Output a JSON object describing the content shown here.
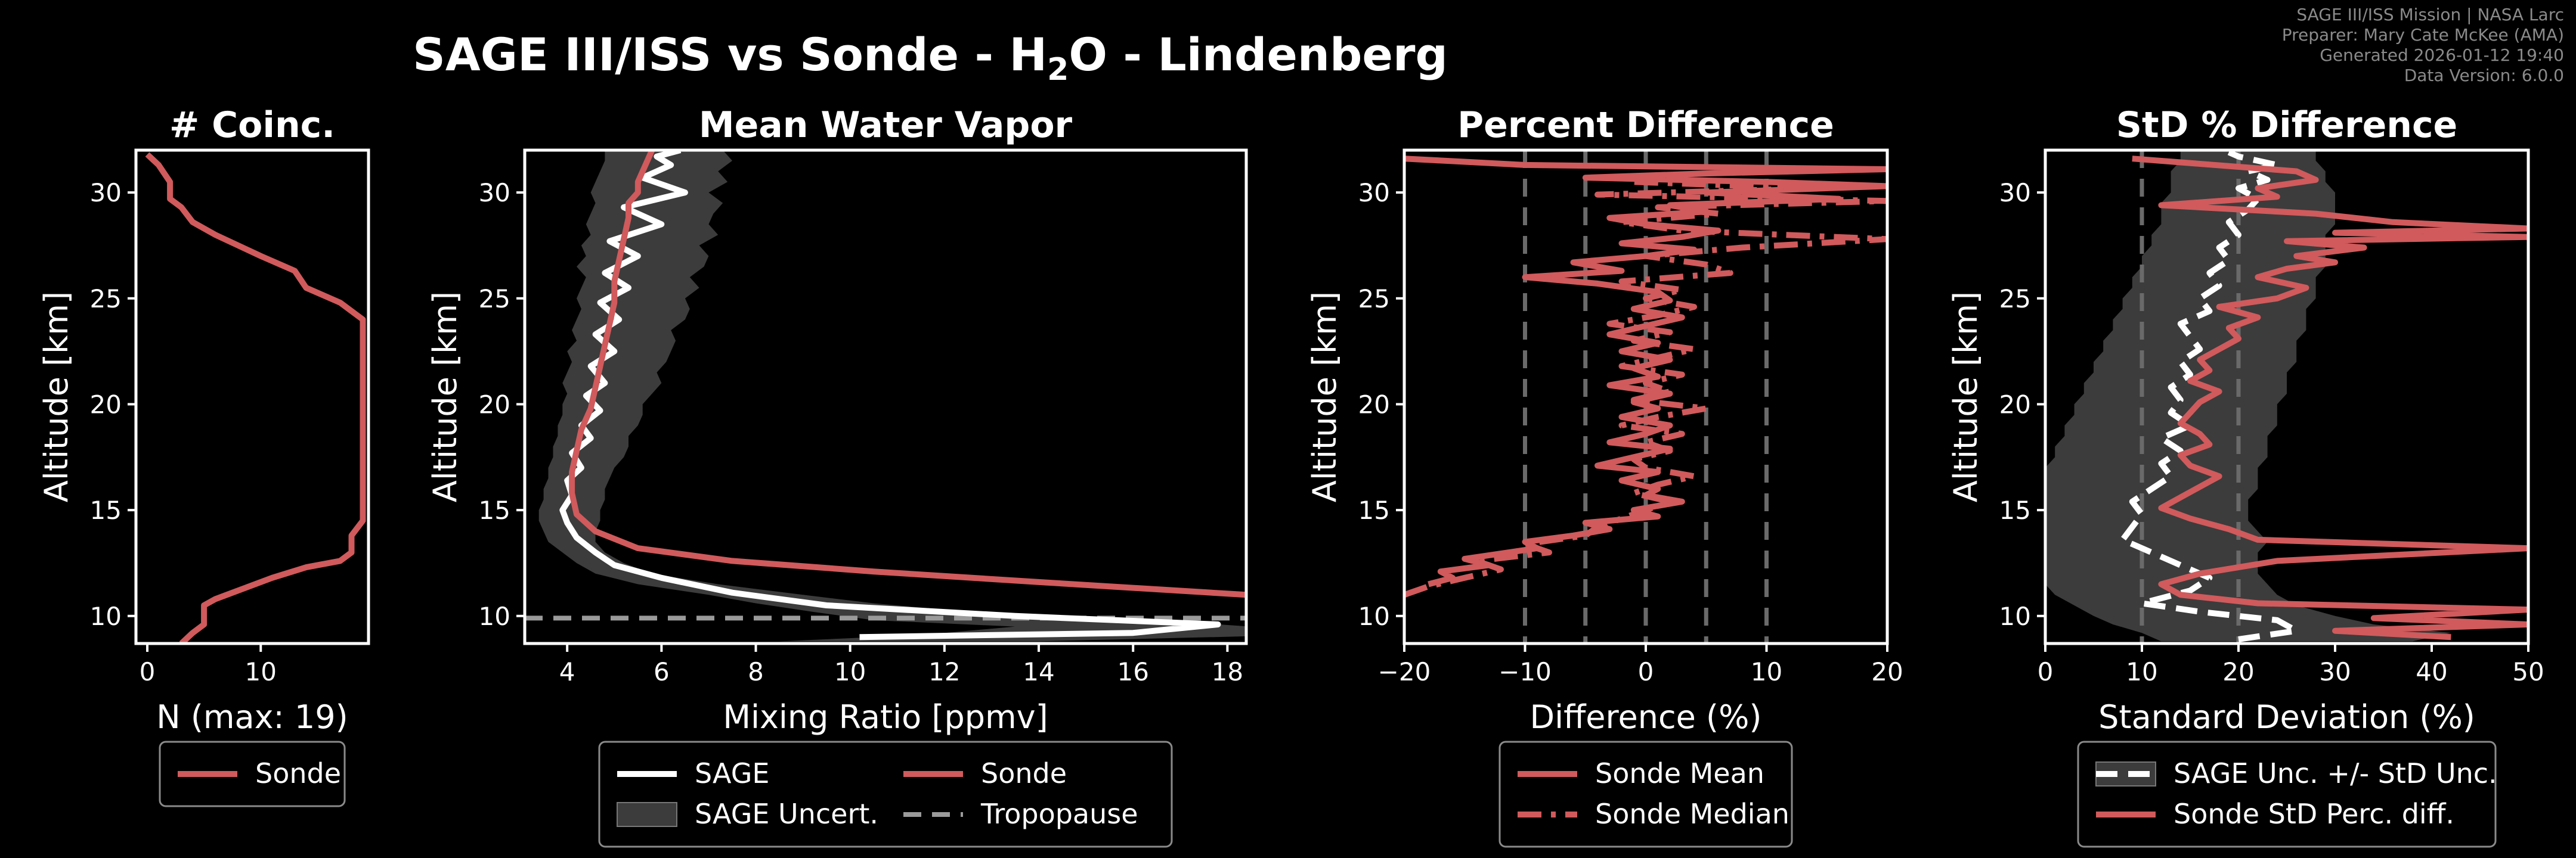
{
  "title_main": "SAGE III/ISS vs Sonde - H",
  "title_sub": "2",
  "title_tail": "O - Lindenberg",
  "meta": [
    "SAGE III/ISS Mission | NASA Larc",
    "Preparer: Mary Cate McKee (AMA)",
    "Generated 2026-01-12 19:40",
    "Data Version: 6.0.0"
  ],
  "colors": {
    "sonde": "#d05a5c",
    "sage": "#ffffff",
    "band": "#3c3c3c",
    "tropopause": "#9a9a9a",
    "grid": "#6a6a6a"
  },
  "chart_data": [
    {
      "type": "line",
      "title": "# Coinc.",
      "xlabel": "N (max: 19)",
      "ylabel": "Altitude [km]",
      "xlim": [
        -1,
        19.5
      ],
      "ylim": [
        8.7,
        32
      ],
      "xticks": [
        0,
        10
      ],
      "yticks": [
        10,
        15,
        20,
        25,
        30
      ],
      "legend": [
        "Sonde"
      ],
      "series": [
        {
          "name": "Sonde",
          "style": "sonde",
          "x": [
            3,
            4,
            5,
            5,
            6,
            8,
            11,
            14,
            17,
            18,
            18,
            19,
            19,
            19,
            19,
            19,
            18,
            17,
            14,
            13,
            10,
            8,
            6,
            4,
            3,
            2,
            2,
            1,
            0
          ],
          "y": [
            8.7,
            9.2,
            9.6,
            10.5,
            10.8,
            11.2,
            11.8,
            12.3,
            12.6,
            13,
            13.8,
            14.5,
            18,
            21,
            22.5,
            24,
            24.4,
            24.8,
            25.5,
            26.3,
            27,
            27.5,
            28,
            28.6,
            29.3,
            29.7,
            30.5,
            31.3,
            31.8
          ]
        }
      ]
    },
    {
      "type": "line",
      "title": "Mean Water Vapor",
      "xlabel": "Mixing Ratio [ppmv]",
      "ylabel": "Altitude [km]",
      "xlim": [
        3.1,
        18.4
      ],
      "ylim": [
        8.7,
        32
      ],
      "xticks": [
        4,
        6,
        8,
        10,
        12,
        14,
        16,
        18
      ],
      "yticks": [
        10,
        15,
        20,
        25,
        30
      ],
      "legend": [
        "SAGE",
        "Sonde",
        "SAGE Uncert.",
        "Tropopause"
      ],
      "tropopause_km": 9.9,
      "band": {
        "name": "SAGE Uncert.",
        "y": [
          8.8,
          9.1,
          9.5,
          9.8,
          10.2,
          10.6,
          11.0,
          11.5,
          12.0,
          12.5,
          13.0,
          13.5,
          14.0,
          14.5,
          15.0,
          15.5,
          16.0,
          16.5,
          17.0,
          17.5,
          18.0,
          18.5,
          19.0,
          19.5,
          20.0,
          20.5,
          21.0,
          21.5,
          22.0,
          22.5,
          23.0,
          23.5,
          24.0,
          24.5,
          25.0,
          25.5,
          26.0,
          26.5,
          27.0,
          27.5,
          28.0,
          28.5,
          29.0,
          29.5,
          30.0,
          30.5,
          31.0,
          31.5,
          32.0
        ],
        "lo": [
          8.5,
          11.5,
          13.5,
          10.5,
          9.2,
          8.0,
          7.0,
          5.5,
          4.6,
          4.2,
          3.9,
          3.6,
          3.5,
          3.4,
          3.4,
          3.5,
          3.5,
          3.6,
          3.6,
          3.7,
          3.7,
          3.8,
          3.8,
          3.9,
          3.9,
          4.0,
          3.9,
          4.0,
          4.1,
          4.0,
          4.2,
          4.1,
          4.2,
          4.3,
          4.2,
          4.3,
          4.4,
          4.2,
          4.4,
          4.3,
          4.5,
          4.4,
          4.5,
          4.6,
          4.5,
          4.6,
          4.7,
          4.8,
          4.8
        ],
        "hi": [
          14.0,
          19.5,
          18.5,
          16.5,
          12.5,
          10.5,
          9.0,
          7.2,
          5.8,
          5.2,
          4.8,
          4.6,
          4.6,
          4.7,
          4.7,
          4.8,
          4.8,
          4.9,
          5.0,
          5.2,
          5.3,
          5.3,
          5.5,
          5.6,
          5.6,
          5.8,
          6.0,
          5.9,
          6.1,
          6.2,
          6.3,
          6.2,
          6.5,
          6.6,
          6.5,
          6.8,
          6.6,
          6.9,
          7.0,
          6.8,
          7.2,
          7.0,
          7.1,
          7.3,
          7.0,
          7.4,
          7.2,
          7.5,
          7.3
        ]
      },
      "series": [
        {
          "name": "SAGE",
          "style": "sage",
          "x": [
            10.2,
            16.0,
            17.8,
            13.5,
            9.5,
            7.5,
            6.0,
            5.0,
            4.6,
            4.2,
            4.0,
            3.9,
            4.1,
            4.0,
            4.3,
            4.1,
            4.5,
            4.3,
            4.7,
            4.4,
            4.8,
            4.5,
            5.0,
            4.6,
            5.1,
            4.7,
            5.3,
            4.8,
            5.5,
            4.9,
            6.0,
            5.2,
            6.5,
            5.6,
            6.2,
            5.9,
            6.4
          ],
          "y": [
            9.0,
            9.2,
            9.6,
            10.0,
            10.5,
            11.1,
            11.8,
            12.4,
            13.0,
            13.7,
            14.4,
            15.0,
            15.7,
            16.4,
            17.0,
            17.7,
            18.4,
            19.0,
            19.7,
            20.4,
            21.0,
            21.8,
            22.5,
            23.3,
            24.0,
            24.8,
            25.5,
            26.2,
            27.0,
            27.7,
            28.5,
            29.3,
            30.0,
            30.7,
            31.3,
            31.7,
            32.0
          ]
        },
        {
          "name": "Sonde",
          "style": "sonde",
          "x": [
            18.4,
            14.0,
            10.5,
            7.5,
            5.5,
            4.6,
            4.2,
            4.1,
            4.1,
            4.2,
            4.3,
            4.5,
            4.6,
            4.7,
            4.8,
            4.9,
            5.0,
            5.0,
            5.1,
            5.2,
            5.3,
            5.3,
            5.5,
            5.5,
            5.6,
            5.7,
            5.8
          ],
          "y": [
            11.0,
            11.6,
            12.1,
            12.6,
            13.2,
            14.0,
            14.8,
            15.8,
            16.8,
            17.8,
            18.8,
            19.8,
            20.8,
            21.8,
            22.8,
            23.8,
            24.8,
            25.8,
            26.8,
            27.8,
            28.8,
            29.5,
            30.0,
            30.5,
            31.0,
            31.5,
            32.0
          ]
        }
      ]
    },
    {
      "type": "line",
      "title": "Percent Difference",
      "xlabel": "Difference (%)",
      "ylabel": "Altitude [km]",
      "xlim": [
        -20,
        20
      ],
      "ylim": [
        8.7,
        32
      ],
      "xticks": [
        -20,
        -10,
        0,
        10,
        20
      ],
      "yticks": [
        10,
        15,
        20,
        25,
        30
      ],
      "vlines": [
        -10,
        -5,
        0,
        5,
        10
      ],
      "legend": [
        "Sonde Mean",
        "Sonde Median"
      ],
      "series": [
        {
          "name": "Sonde Mean",
          "style": "sonde",
          "x": [
            -18,
            -16,
            -17,
            -13,
            -15,
            -9,
            -10,
            -6,
            -3,
            -5,
            1,
            -1,
            3,
            0,
            1,
            -2,
            1,
            -4,
            -1,
            2,
            -3,
            0,
            2,
            -2,
            1,
            -1,
            2,
            -3,
            1,
            -1,
            2,
            -2,
            1,
            -3,
            0,
            3,
            -1,
            2,
            1,
            -4,
            -10,
            -2,
            -6,
            0,
            4,
            -2,
            3,
            6,
            0,
            -3,
            5,
            2,
            16,
            5,
            20,
            10,
            -5,
            5,
            20,
            -10,
            -20
          ],
          "y": [
            11.5,
            11.8,
            12.1,
            12.4,
            12.7,
            13.2,
            13.5,
            13.8,
            14.1,
            14.4,
            14.7,
            15.0,
            15.4,
            15.7,
            16.0,
            16.4,
            16.8,
            17.1,
            17.5,
            17.9,
            18.2,
            18.6,
            19.0,
            19.4,
            19.8,
            20.1,
            20.5,
            20.9,
            21.3,
            21.7,
            22.1,
            22.5,
            22.9,
            23.3,
            23.7,
            24.1,
            24.5,
            24.9,
            25.3,
            25.7,
            26.0,
            26.3,
            26.7,
            27.0,
            27.3,
            27.6,
            27.9,
            28.2,
            28.5,
            28.8,
            29.1,
            29.4,
            29.7,
            30.0,
            30.3,
            30.5,
            30.7,
            30.9,
            31.1,
            31.3,
            31.6
          ]
        },
        {
          "name": "Sonde Median",
          "style": "sonde-dashdot",
          "x": [
            -20,
            -18,
            -15,
            -12,
            -14,
            -8,
            -10,
            -5,
            -4,
            -2,
            0,
            2,
            -1,
            1,
            4,
            0,
            -1,
            2,
            0,
            3,
            -2,
            1,
            5,
            -1,
            2,
            0,
            3,
            -2,
            1,
            4,
            -1,
            2,
            -3,
            1,
            4,
            0,
            3,
            -2,
            7,
            5,
            0,
            8,
            20,
            3,
            -2,
            6,
            1,
            20,
            -4,
            14,
            -1
          ],
          "y": [
            11.0,
            11.4,
            11.8,
            12.2,
            12.6,
            13.0,
            13.4,
            13.8,
            14.2,
            14.6,
            15.0,
            15.4,
            15.8,
            16.2,
            16.6,
            17.0,
            17.4,
            17.8,
            18.2,
            18.6,
            19.0,
            19.4,
            19.8,
            20.2,
            20.6,
            21.0,
            21.4,
            21.8,
            22.2,
            22.6,
            23.0,
            23.4,
            23.8,
            24.2,
            24.6,
            25.0,
            25.4,
            25.8,
            26.2,
            26.6,
            27.0,
            27.4,
            27.8,
            28.2,
            28.6,
            29.0,
            29.3,
            29.6,
            29.9,
            30.2,
            30.5
          ]
        }
      ]
    },
    {
      "type": "line",
      "title": "StD % Difference",
      "xlabel": "Standard Deviation (%)",
      "ylabel": "Altitude [km]",
      "xlim": [
        0,
        50
      ],
      "ylim": [
        8.7,
        32
      ],
      "xticks": [
        0,
        10,
        20,
        30,
        40,
        50
      ],
      "yticks": [
        10,
        15,
        20,
        25,
        30
      ],
      "vlines": [
        10,
        20
      ],
      "legend": [
        "SAGE Unc. +/- StD Unc.",
        "Sonde StD Perc. diff."
      ],
      "band": {
        "name": "SAGE Unc. +/- StD Unc.",
        "y": [
          8.8,
          9.2,
          9.6,
          10.0,
          10.5,
          11.0,
          11.5,
          12.0,
          12.5,
          13.0,
          13.5,
          14.0,
          14.5,
          15.0,
          15.5,
          16.0,
          16.5,
          17.0,
          17.5,
          18.0,
          18.5,
          19.0,
          19.5,
          20.0,
          20.5,
          21.0,
          21.5,
          22.0,
          22.5,
          23.0,
          23.5,
          24.0,
          24.5,
          25.0,
          25.5,
          26.0,
          26.5,
          27.0,
          27.5,
          28.0,
          28.5,
          29.0,
          29.5,
          30.0,
          30.5,
          31.0,
          31.5,
          32.0
        ],
        "lo": [
          12,
          10,
          7,
          5,
          3,
          1,
          0,
          0,
          0,
          0,
          0,
          0,
          0,
          0,
          0,
          0,
          0,
          0,
          1,
          1,
          2,
          2,
          3,
          3,
          4,
          4,
          5,
          5,
          6,
          6,
          7,
          7,
          8,
          8,
          9,
          9,
          10,
          10,
          11,
          11,
          12,
          12,
          12,
          13,
          13,
          13,
          14,
          14
        ],
        "hi": [
          38,
          42,
          34,
          30,
          26,
          24,
          23,
          22,
          22,
          22,
          23,
          22,
          21,
          21,
          21,
          22,
          22,
          22,
          23,
          23,
          23,
          24,
          24,
          24,
          25,
          25,
          25,
          26,
          26,
          26,
          27,
          27,
          27,
          28,
          28,
          28,
          29,
          29,
          29,
          29,
          30,
          30,
          30,
          30,
          29,
          29,
          28,
          28
        ]
      },
      "series": [
        {
          "name": "SAGE Unc. +/- StD Unc.",
          "style": "sage-dashed",
          "x": [
            20,
            26,
            24,
            16,
            10,
            15,
            17,
            14,
            11,
            8,
            9,
            10,
            9,
            11,
            13,
            12,
            14,
            12,
            15,
            13,
            14,
            13,
            15,
            14,
            16,
            15,
            14,
            17,
            16,
            18,
            17,
            19,
            18,
            20,
            19,
            21,
            22,
            20,
            23,
            21,
            24,
            22,
            20,
            19
          ],
          "y": [
            8.9,
            9.3,
            9.8,
            10.2,
            10.6,
            11.2,
            11.8,
            12.4,
            13.0,
            13.6,
            14.2,
            14.8,
            15.4,
            16.0,
            16.6,
            17.2,
            17.8,
            18.4,
            19.0,
            19.6,
            20.2,
            20.8,
            21.4,
            22.0,
            22.6,
            23.2,
            23.8,
            24.4,
            25.0,
            25.6,
            26.2,
            26.8,
            27.4,
            28.0,
            28.6,
            29.2,
            29.7,
            30.2,
            30.6,
            31.0,
            31.3,
            31.5,
            31.7,
            31.9
          ]
        },
        {
          "name": "Sonde StD Perc. diff.",
          "style": "sonde",
          "x": [
            42,
            30,
            50,
            34,
            50,
            22,
            14,
            12,
            16,
            24,
            50,
            22,
            19,
            15,
            12,
            14,
            16,
            18,
            15,
            14,
            17,
            16,
            14,
            15,
            16,
            18,
            15,
            17,
            16,
            18,
            20,
            19,
            22,
            18,
            24,
            27,
            22,
            25,
            30,
            26,
            33,
            25,
            50,
            30,
            50,
            36,
            28,
            12,
            24,
            22,
            28,
            26,
            9
          ],
          "y": [
            9.0,
            9.3,
            9.6,
            9.9,
            10.3,
            10.6,
            11.0,
            11.5,
            12.0,
            12.6,
            13.2,
            13.6,
            14.1,
            14.6,
            15.1,
            15.6,
            16.1,
            16.6,
            17.1,
            17.6,
            18.1,
            18.6,
            19.1,
            19.6,
            20.1,
            20.6,
            21.1,
            21.6,
            22.1,
            22.6,
            23.1,
            23.6,
            24.1,
            24.6,
            25.0,
            25.5,
            26.0,
            26.4,
            26.7,
            27.0,
            27.4,
            27.7,
            27.9,
            28.1,
            28.3,
            28.6,
            29.0,
            29.4,
            29.8,
            30.2,
            30.6,
            31.0,
            31.6
          ]
        }
      ]
    }
  ]
}
